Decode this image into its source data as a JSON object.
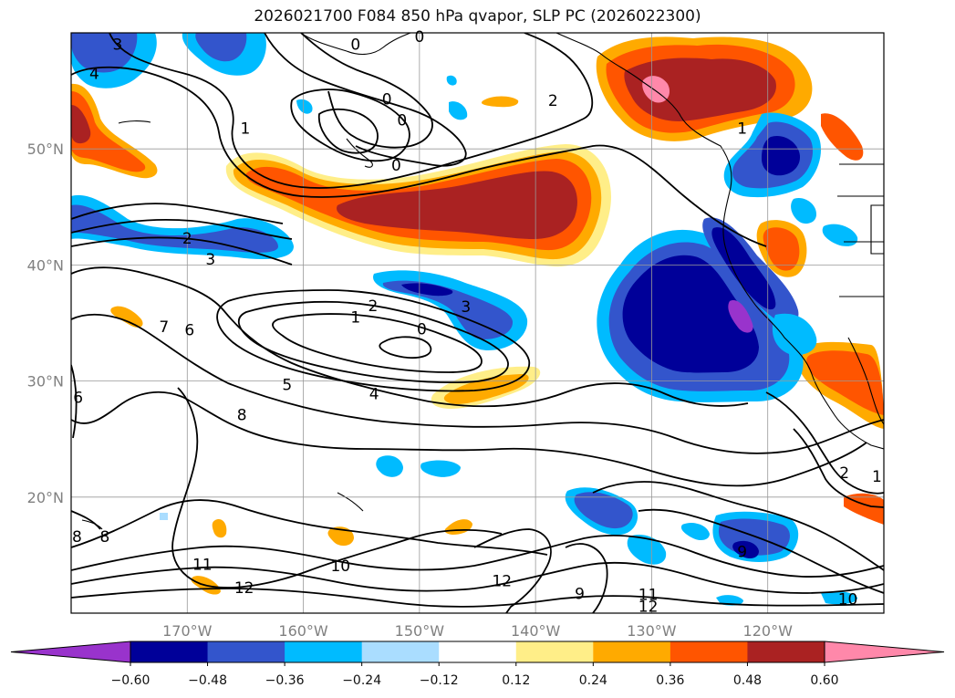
{
  "title": "2026021700 F084 850 hPa qvapor, SLP PC (2026022300)",
  "map": {
    "lon_range": [
      -180,
      -110
    ],
    "lat_range": [
      10,
      60
    ],
    "lon_ticks": [
      {
        "lon": -170,
        "label": "170°W"
      },
      {
        "lon": -160,
        "label": "160°W"
      },
      {
        "lon": -150,
        "label": "150°W"
      },
      {
        "lon": -140,
        "label": "140°W"
      },
      {
        "lon": -130,
        "label": "130°W"
      },
      {
        "lon": -120,
        "label": "120°W"
      }
    ],
    "lat_ticks": [
      {
        "lat": 50,
        "label": "50°N"
      },
      {
        "lat": 40,
        "label": "40°N"
      },
      {
        "lat": 30,
        "label": "30°N"
      },
      {
        "lat": 20,
        "label": "20°N"
      }
    ],
    "grid": true
  },
  "colorbar": {
    "levels": [
      "−0.60",
      "−0.48",
      "−0.36",
      "−0.24",
      "−0.12",
      "0.12",
      "0.24",
      "0.36",
      "0.48",
      "0.60"
    ],
    "colors": [
      "#9933cc",
      "#000099",
      "#3355cc",
      "#00bbff",
      "#aaddff",
      "#ffffff",
      "#ffee88",
      "#ffaa00",
      "#ff5500",
      "#aa2222",
      "#ff88aa"
    ]
  },
  "contour_labels": [
    {
      "text": "3",
      "lon": -176,
      "lat": 59
    },
    {
      "text": "4",
      "lon": -178,
      "lat": 56.5
    },
    {
      "text": "0",
      "lon": -155.5,
      "lat": 59
    },
    {
      "text": "0",
      "lon": -150,
      "lat": 59.7
    },
    {
      "text": "0",
      "lon": -152.8,
      "lat": 54.3
    },
    {
      "text": "0",
      "lon": -151.5,
      "lat": 52.5
    },
    {
      "text": "0",
      "lon": -152,
      "lat": 48.6
    },
    {
      "text": "1",
      "lon": -165,
      "lat": 51.8
    },
    {
      "text": "2",
      "lon": -170,
      "lat": 42.3
    },
    {
      "text": "3",
      "lon": -168,
      "lat": 40.5
    },
    {
      "text": "2",
      "lon": -138.5,
      "lat": 54.2
    },
    {
      "text": "1",
      "lon": -122.2,
      "lat": 51.8
    },
    {
      "text": "2",
      "lon": -154,
      "lat": 36.5
    },
    {
      "text": "1",
      "lon": -155.5,
      "lat": 35.5
    },
    {
      "text": "3",
      "lon": -146,
      "lat": 36.4
    },
    {
      "text": "0",
      "lon": -149.8,
      "lat": 34.5
    },
    {
      "text": "7",
      "lon": -172,
      "lat": 34.7
    },
    {
      "text": "6",
      "lon": -169.8,
      "lat": 34.4
    },
    {
      "text": "5",
      "lon": -161.4,
      "lat": 29.7
    },
    {
      "text": "4",
      "lon": -153.9,
      "lat": 28.9
    },
    {
      "text": "6",
      "lon": -179.4,
      "lat": 28.6
    },
    {
      "text": "8",
      "lon": -165.3,
      "lat": 27.1
    },
    {
      "text": "8",
      "lon": -179.5,
      "lat": 16.6
    },
    {
      "text": "8",
      "lon": -177.1,
      "lat": 16.6
    },
    {
      "text": "11",
      "lon": -168.7,
      "lat": 14.2
    },
    {
      "text": "12",
      "lon": -165.1,
      "lat": 12.2
    },
    {
      "text": "10",
      "lon": -156.8,
      "lat": 14.1
    },
    {
      "text": "12",
      "lon": -142.9,
      "lat": 12.8
    },
    {
      "text": "9",
      "lon": -136.2,
      "lat": 11.7
    },
    {
      "text": "11",
      "lon": -130.3,
      "lat": 11.6
    },
    {
      "text": "12",
      "lon": -130.3,
      "lat": 10.6
    },
    {
      "text": "9",
      "lon": -122.2,
      "lat": 15.3
    },
    {
      "text": "10",
      "lon": -113.1,
      "lat": 11.2
    },
    {
      "text": "2",
      "lon": -113.4,
      "lat": 22.1
    },
    {
      "text": "1",
      "lon": -110.6,
      "lat": 21.8
    }
  ]
}
